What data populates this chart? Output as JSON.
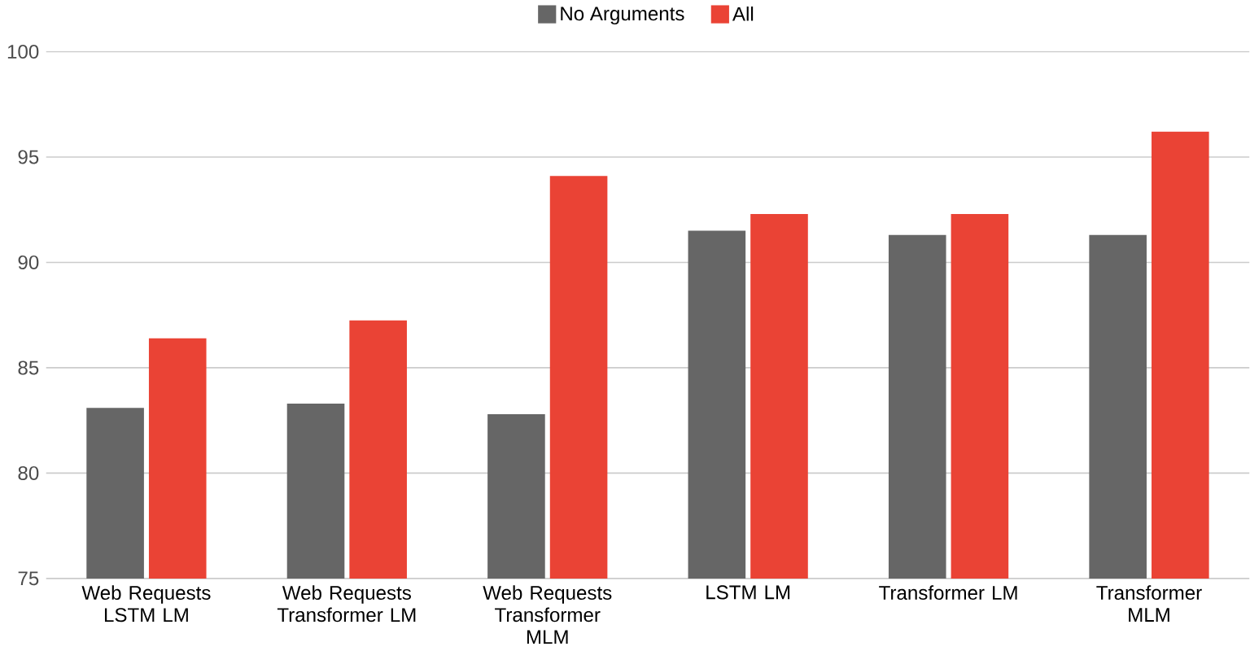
{
  "chart_data": {
    "type": "bar",
    "categories": [
      "Web Requests LSTM LM",
      "Web Requests Transformer LM",
      "Web Requests Transformer MLM",
      "LSTM LM",
      "Transformer LM",
      "Transformer MLM"
    ],
    "series": [
      {
        "name": "No Arguments",
        "color": "#666666",
        "values": [
          83.1,
          83.3,
          82.8,
          91.5,
          91.3,
          91.3
        ]
      },
      {
        "name": "All",
        "color": "#ea4335",
        "values": [
          86.4,
          87.25,
          94.1,
          92.3,
          92.3,
          96.2
        ]
      }
    ],
    "ylim": [
      75,
      100
    ],
    "yticks": [
      75,
      80,
      85,
      90,
      95,
      100
    ],
    "grid": "y",
    "legend": "top"
  }
}
